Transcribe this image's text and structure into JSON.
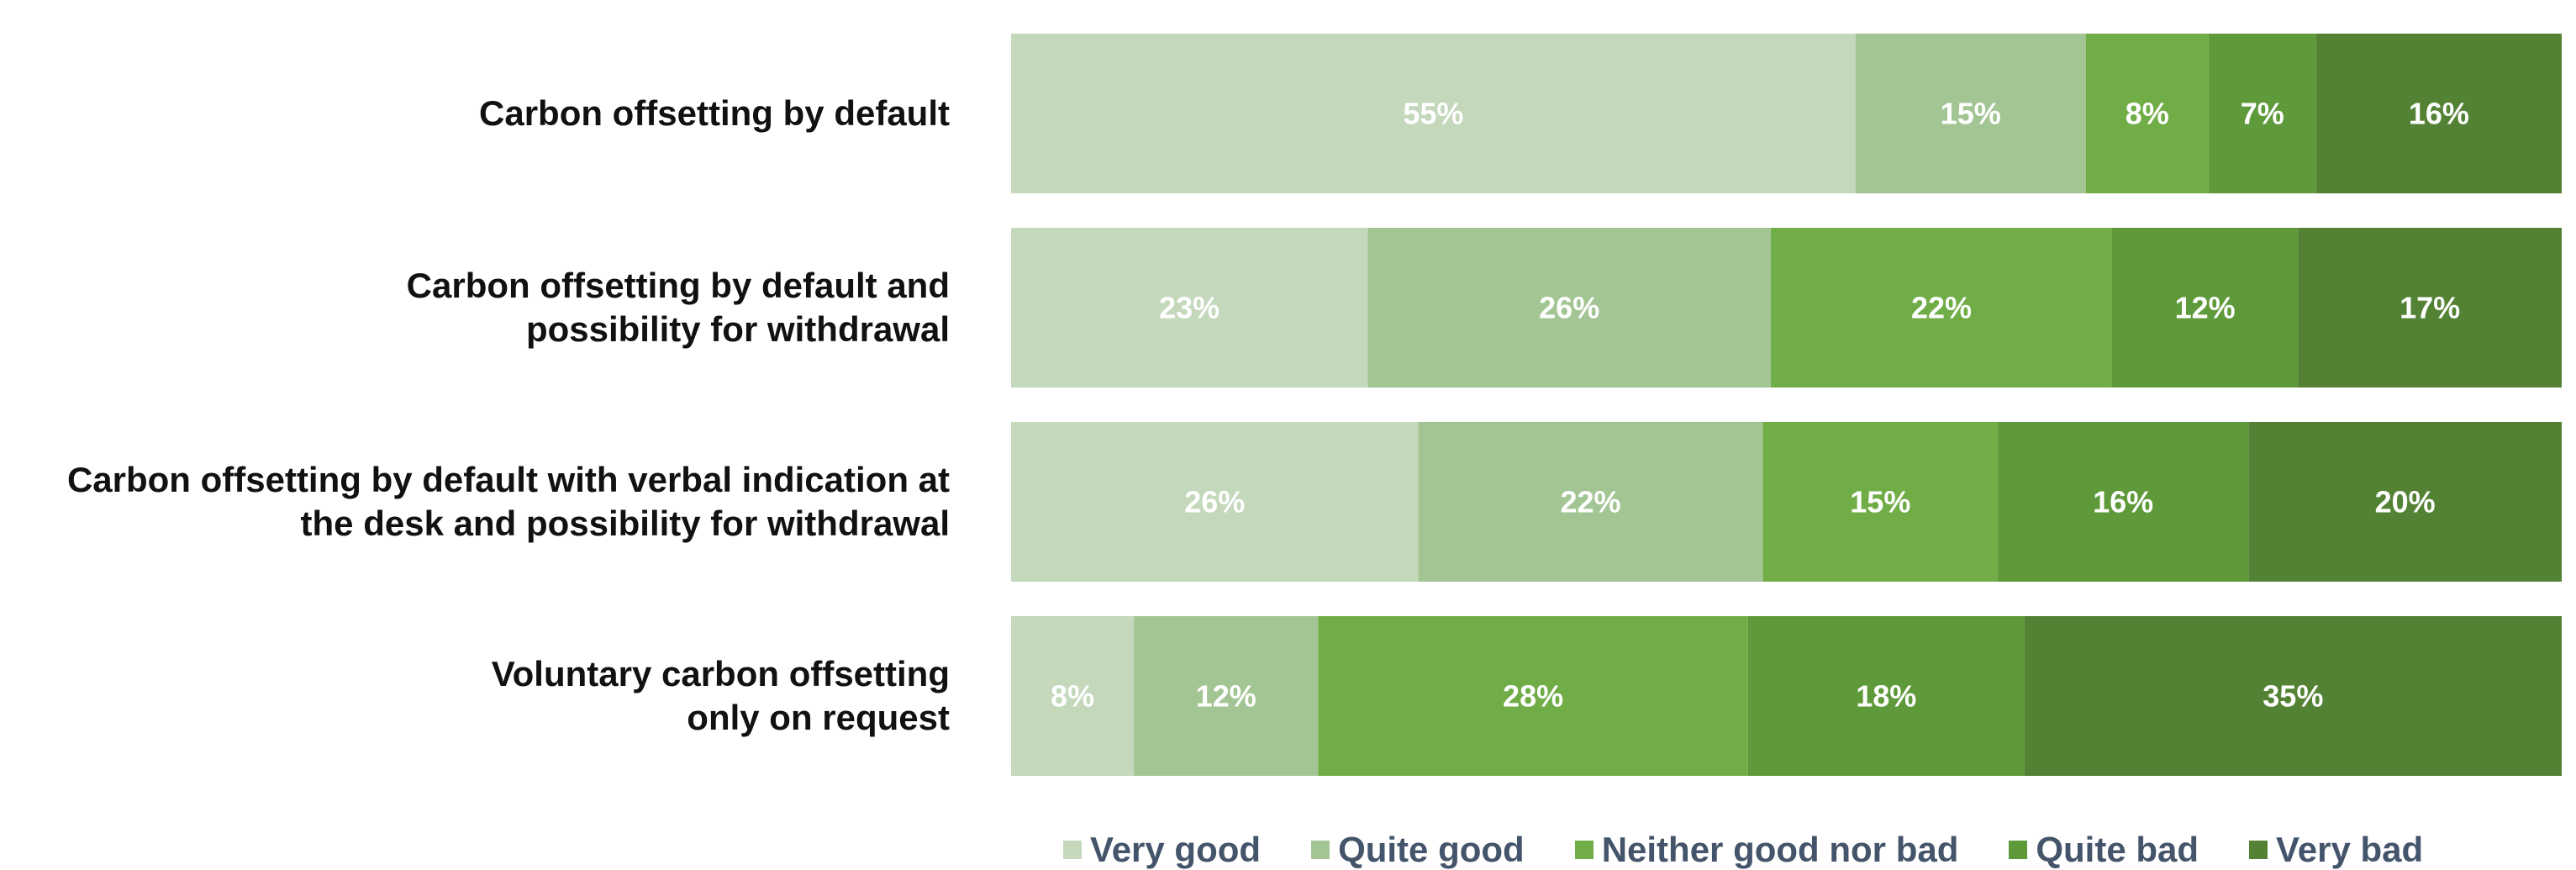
{
  "chart_data": {
    "type": "bar",
    "orientation": "horizontal",
    "stacked": true,
    "percent": true,
    "categories": [
      [
        "Carbon offsetting by default"
      ],
      [
        "Carbon offsetting by default and",
        "possibility for withdrawal"
      ],
      [
        "Carbon offsetting by default with verbal indication at",
        "the desk and possibility for withdrawal"
      ],
      [
        "Voluntary carbon offsetting",
        "only on request"
      ]
    ],
    "series": [
      {
        "name": "Very good",
        "color": "#c4d8bc",
        "values": [
          55,
          23,
          26,
          8
        ]
      },
      {
        "name": "Quite good",
        "color": "#a3c594",
        "values": [
          15,
          26,
          22,
          12
        ]
      },
      {
        "name": "Neither good nor bad",
        "color": "#70ad47",
        "values": [
          8,
          22,
          15,
          28
        ]
      },
      {
        "name": "Quite bad",
        "color": "#5e993a",
        "values": [
          7,
          12,
          16,
          18
        ]
      },
      {
        "name": "Very bad",
        "color": "#548235",
        "values": [
          16,
          17,
          20,
          35
        ]
      }
    ],
    "data_label_suffix": "%",
    "title": "",
    "xlabel": "",
    "ylabel": "",
    "grid": false,
    "legend_position": "bottom"
  }
}
